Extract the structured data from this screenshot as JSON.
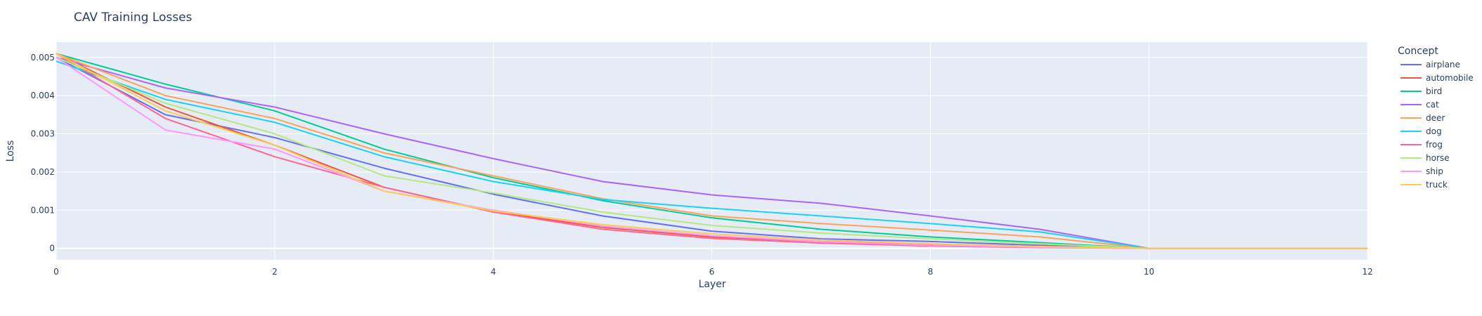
{
  "chart_data": {
    "type": "line",
    "title": "CAV Training Losses",
    "xlabel": "Layer",
    "ylabel": "Loss",
    "xlim": [
      0,
      12
    ],
    "ylim": [
      -0.0003,
      0.0054
    ],
    "x_ticks": [
      0,
      2,
      4,
      6,
      8,
      10,
      12
    ],
    "y_ticks": [
      {
        "value": 0,
        "label": "0"
      },
      {
        "value": 0.001,
        "label": "0.001"
      },
      {
        "value": 0.002,
        "label": "0.002"
      },
      {
        "value": 0.003,
        "label": "0.003"
      },
      {
        "value": 0.004,
        "label": "0.004"
      },
      {
        "value": 0.005,
        "label": "0.005"
      }
    ],
    "grid": true,
    "legend": {
      "title": "Concept",
      "placement": "right"
    },
    "plot_background": "#e5ecf6",
    "x": [
      0,
      1,
      2,
      3,
      4,
      5,
      6,
      7,
      8,
      9,
      10,
      11,
      12
    ],
    "series": [
      {
        "name": "airplane",
        "color": "#636efa",
        "values": [
          0.005,
          0.0035,
          0.0029,
          0.0021,
          0.00142,
          0.00085,
          0.00045,
          0.00025,
          0.00018,
          8e-05,
          0,
          0,
          0
        ]
      },
      {
        "name": "automobile",
        "color": "#ef553b",
        "values": [
          0.0051,
          0.0037,
          0.0027,
          0.0016,
          0.00096,
          0.00055,
          0.0003,
          0.00018,
          0.0001,
          4e-05,
          0,
          0,
          0
        ]
      },
      {
        "name": "bird",
        "color": "#00cc96",
        "values": [
          0.0051,
          0.0043,
          0.0036,
          0.0026,
          0.00185,
          0.00125,
          0.0008,
          0.0005,
          0.0003,
          0.00015,
          0,
          0,
          0
        ]
      },
      {
        "name": "cat",
        "color": "#ab63fa",
        "values": [
          0.005,
          0.0042,
          0.0037,
          0.003,
          0.00235,
          0.00175,
          0.0014,
          0.00118,
          0.00085,
          0.0005,
          0,
          0,
          0
        ]
      },
      {
        "name": "deer",
        "color": "#ffa15a",
        "values": [
          0.0051,
          0.004,
          0.0034,
          0.0025,
          0.0019,
          0.0013,
          0.00085,
          0.00065,
          0.00048,
          0.0003,
          0,
          0,
          0
        ]
      },
      {
        "name": "dog",
        "color": "#19d3f3",
        "values": [
          0.0049,
          0.0039,
          0.0033,
          0.0024,
          0.00175,
          0.00128,
          0.00105,
          0.00085,
          0.00065,
          0.00043,
          0,
          0,
          0
        ]
      },
      {
        "name": "frog",
        "color": "#ff6692",
        "values": [
          0.0051,
          0.0034,
          0.0024,
          0.0016,
          0.00095,
          0.0005,
          0.00026,
          0.00014,
          6e-05,
          2e-05,
          0,
          0,
          0
        ]
      },
      {
        "name": "horse",
        "color": "#b6e880",
        "values": [
          0.005,
          0.0038,
          0.003,
          0.0019,
          0.00145,
          0.00095,
          0.0006,
          0.0004,
          0.00025,
          0.00012,
          0,
          0,
          0
        ]
      },
      {
        "name": "ship",
        "color": "#ff97ff",
        "values": [
          0.005,
          0.0031,
          0.0026,
          0.0015,
          0.001,
          0.00058,
          0.00033,
          0.00018,
          8e-05,
          3e-05,
          0,
          0,
          0
        ]
      },
      {
        "name": "truck",
        "color": "#fecb52",
        "values": [
          0.0051,
          0.0036,
          0.0027,
          0.0015,
          0.00098,
          0.00062,
          0.00038,
          0.00022,
          0.00012,
          5e-05,
          0,
          0,
          0
        ]
      }
    ]
  }
}
